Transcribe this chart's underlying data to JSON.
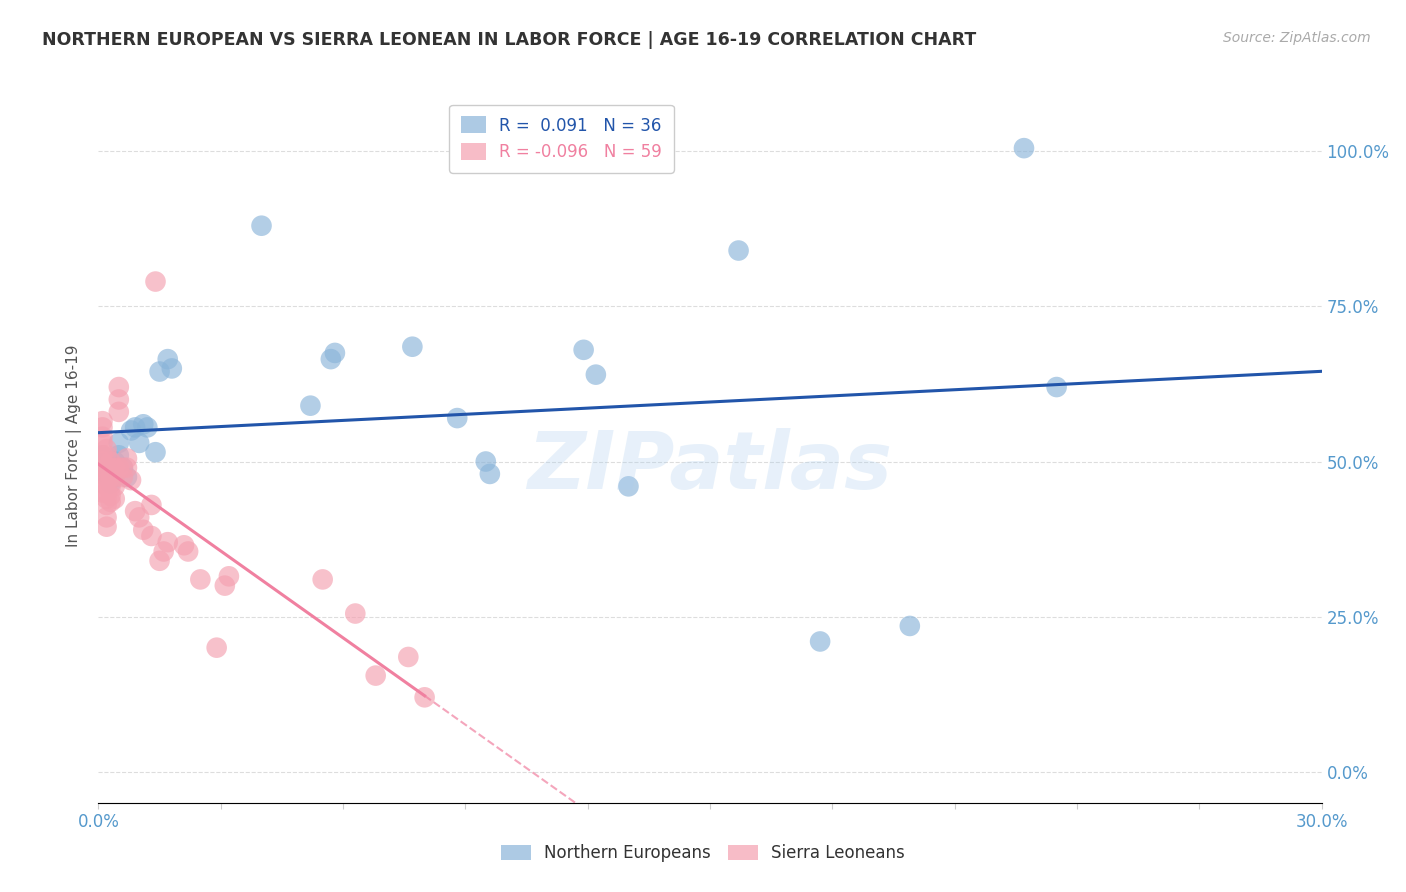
{
  "title": "NORTHERN EUROPEAN VS SIERRA LEONEAN IN LABOR FORCE | AGE 16-19 CORRELATION CHART",
  "source": "Source: ZipAtlas.com",
  "ylabel": "In Labor Force | Age 16-19",
  "xlim": [
    0.0,
    0.3
  ],
  "ylim": [
    -0.05,
    1.1
  ],
  "xtick_labels_show": {
    "0.0": "0.0%",
    "0.30": "30.0%"
  },
  "ytick_positions": [
    0.0,
    0.25,
    0.5,
    0.75,
    1.0
  ],
  "ytick_right_labels": [
    "0.0%",
    "25.0%",
    "50.0%",
    "75.0%",
    "100.0%"
  ],
  "gridline_color": "#dddddd",
  "title_color": "#333333",
  "blue_color": "#8ab4d9",
  "pink_color": "#f4a0b0",
  "blue_line_color": "#2255aa",
  "pink_line_color": "#f080a0",
  "axis_color": "#5599cc",
  "watermark": "ZIPatlas",
  "legend_r_blue": "R =  0.091",
  "legend_n_blue": "N = 36",
  "legend_r_pink": "R = -0.096",
  "legend_n_pink": "N = 59",
  "blue_x": [
    0.001,
    0.002,
    0.002,
    0.003,
    0.003,
    0.004,
    0.004,
    0.005,
    0.005,
    0.006,
    0.007,
    0.008,
    0.009,
    0.01,
    0.011,
    0.012,
    0.014,
    0.015,
    0.017,
    0.018,
    0.04,
    0.052,
    0.057,
    0.058,
    0.077,
    0.088,
    0.095,
    0.096,
    0.119,
    0.122,
    0.13,
    0.157,
    0.177,
    0.199,
    0.227,
    0.235
  ],
  "blue_y": [
    0.51,
    0.49,
    0.48,
    0.475,
    0.465,
    0.5,
    0.475,
    0.53,
    0.51,
    0.49,
    0.475,
    0.55,
    0.555,
    0.53,
    0.56,
    0.555,
    0.515,
    0.645,
    0.665,
    0.65,
    0.88,
    0.59,
    0.665,
    0.675,
    0.685,
    0.57,
    0.5,
    0.48,
    0.68,
    0.64,
    0.46,
    0.84,
    0.21,
    0.235,
    1.005,
    0.62
  ],
  "pink_x": [
    0.001,
    0.001,
    0.001,
    0.001,
    0.001,
    0.001,
    0.001,
    0.001,
    0.001,
    0.001,
    0.002,
    0.002,
    0.002,
    0.002,
    0.002,
    0.002,
    0.002,
    0.002,
    0.002,
    0.002,
    0.003,
    0.003,
    0.003,
    0.003,
    0.003,
    0.003,
    0.004,
    0.004,
    0.004,
    0.004,
    0.005,
    0.005,
    0.005,
    0.005,
    0.006,
    0.006,
    0.007,
    0.007,
    0.008,
    0.009,
    0.01,
    0.011,
    0.013,
    0.013,
    0.014,
    0.015,
    0.016,
    0.017,
    0.021,
    0.022,
    0.025,
    0.029,
    0.031,
    0.032,
    0.055,
    0.063,
    0.068,
    0.076,
    0.08
  ],
  "pink_y": [
    0.565,
    0.555,
    0.54,
    0.53,
    0.51,
    0.5,
    0.49,
    0.48,
    0.465,
    0.45,
    0.52,
    0.51,
    0.49,
    0.475,
    0.46,
    0.45,
    0.44,
    0.43,
    0.41,
    0.395,
    0.5,
    0.49,
    0.475,
    0.46,
    0.445,
    0.435,
    0.49,
    0.475,
    0.46,
    0.44,
    0.62,
    0.6,
    0.58,
    0.49,
    0.49,
    0.475,
    0.505,
    0.49,
    0.47,
    0.42,
    0.41,
    0.39,
    0.43,
    0.38,
    0.79,
    0.34,
    0.355,
    0.37,
    0.365,
    0.355,
    0.31,
    0.2,
    0.3,
    0.315,
    0.31,
    0.255,
    0.155,
    0.185,
    0.12
  ]
}
